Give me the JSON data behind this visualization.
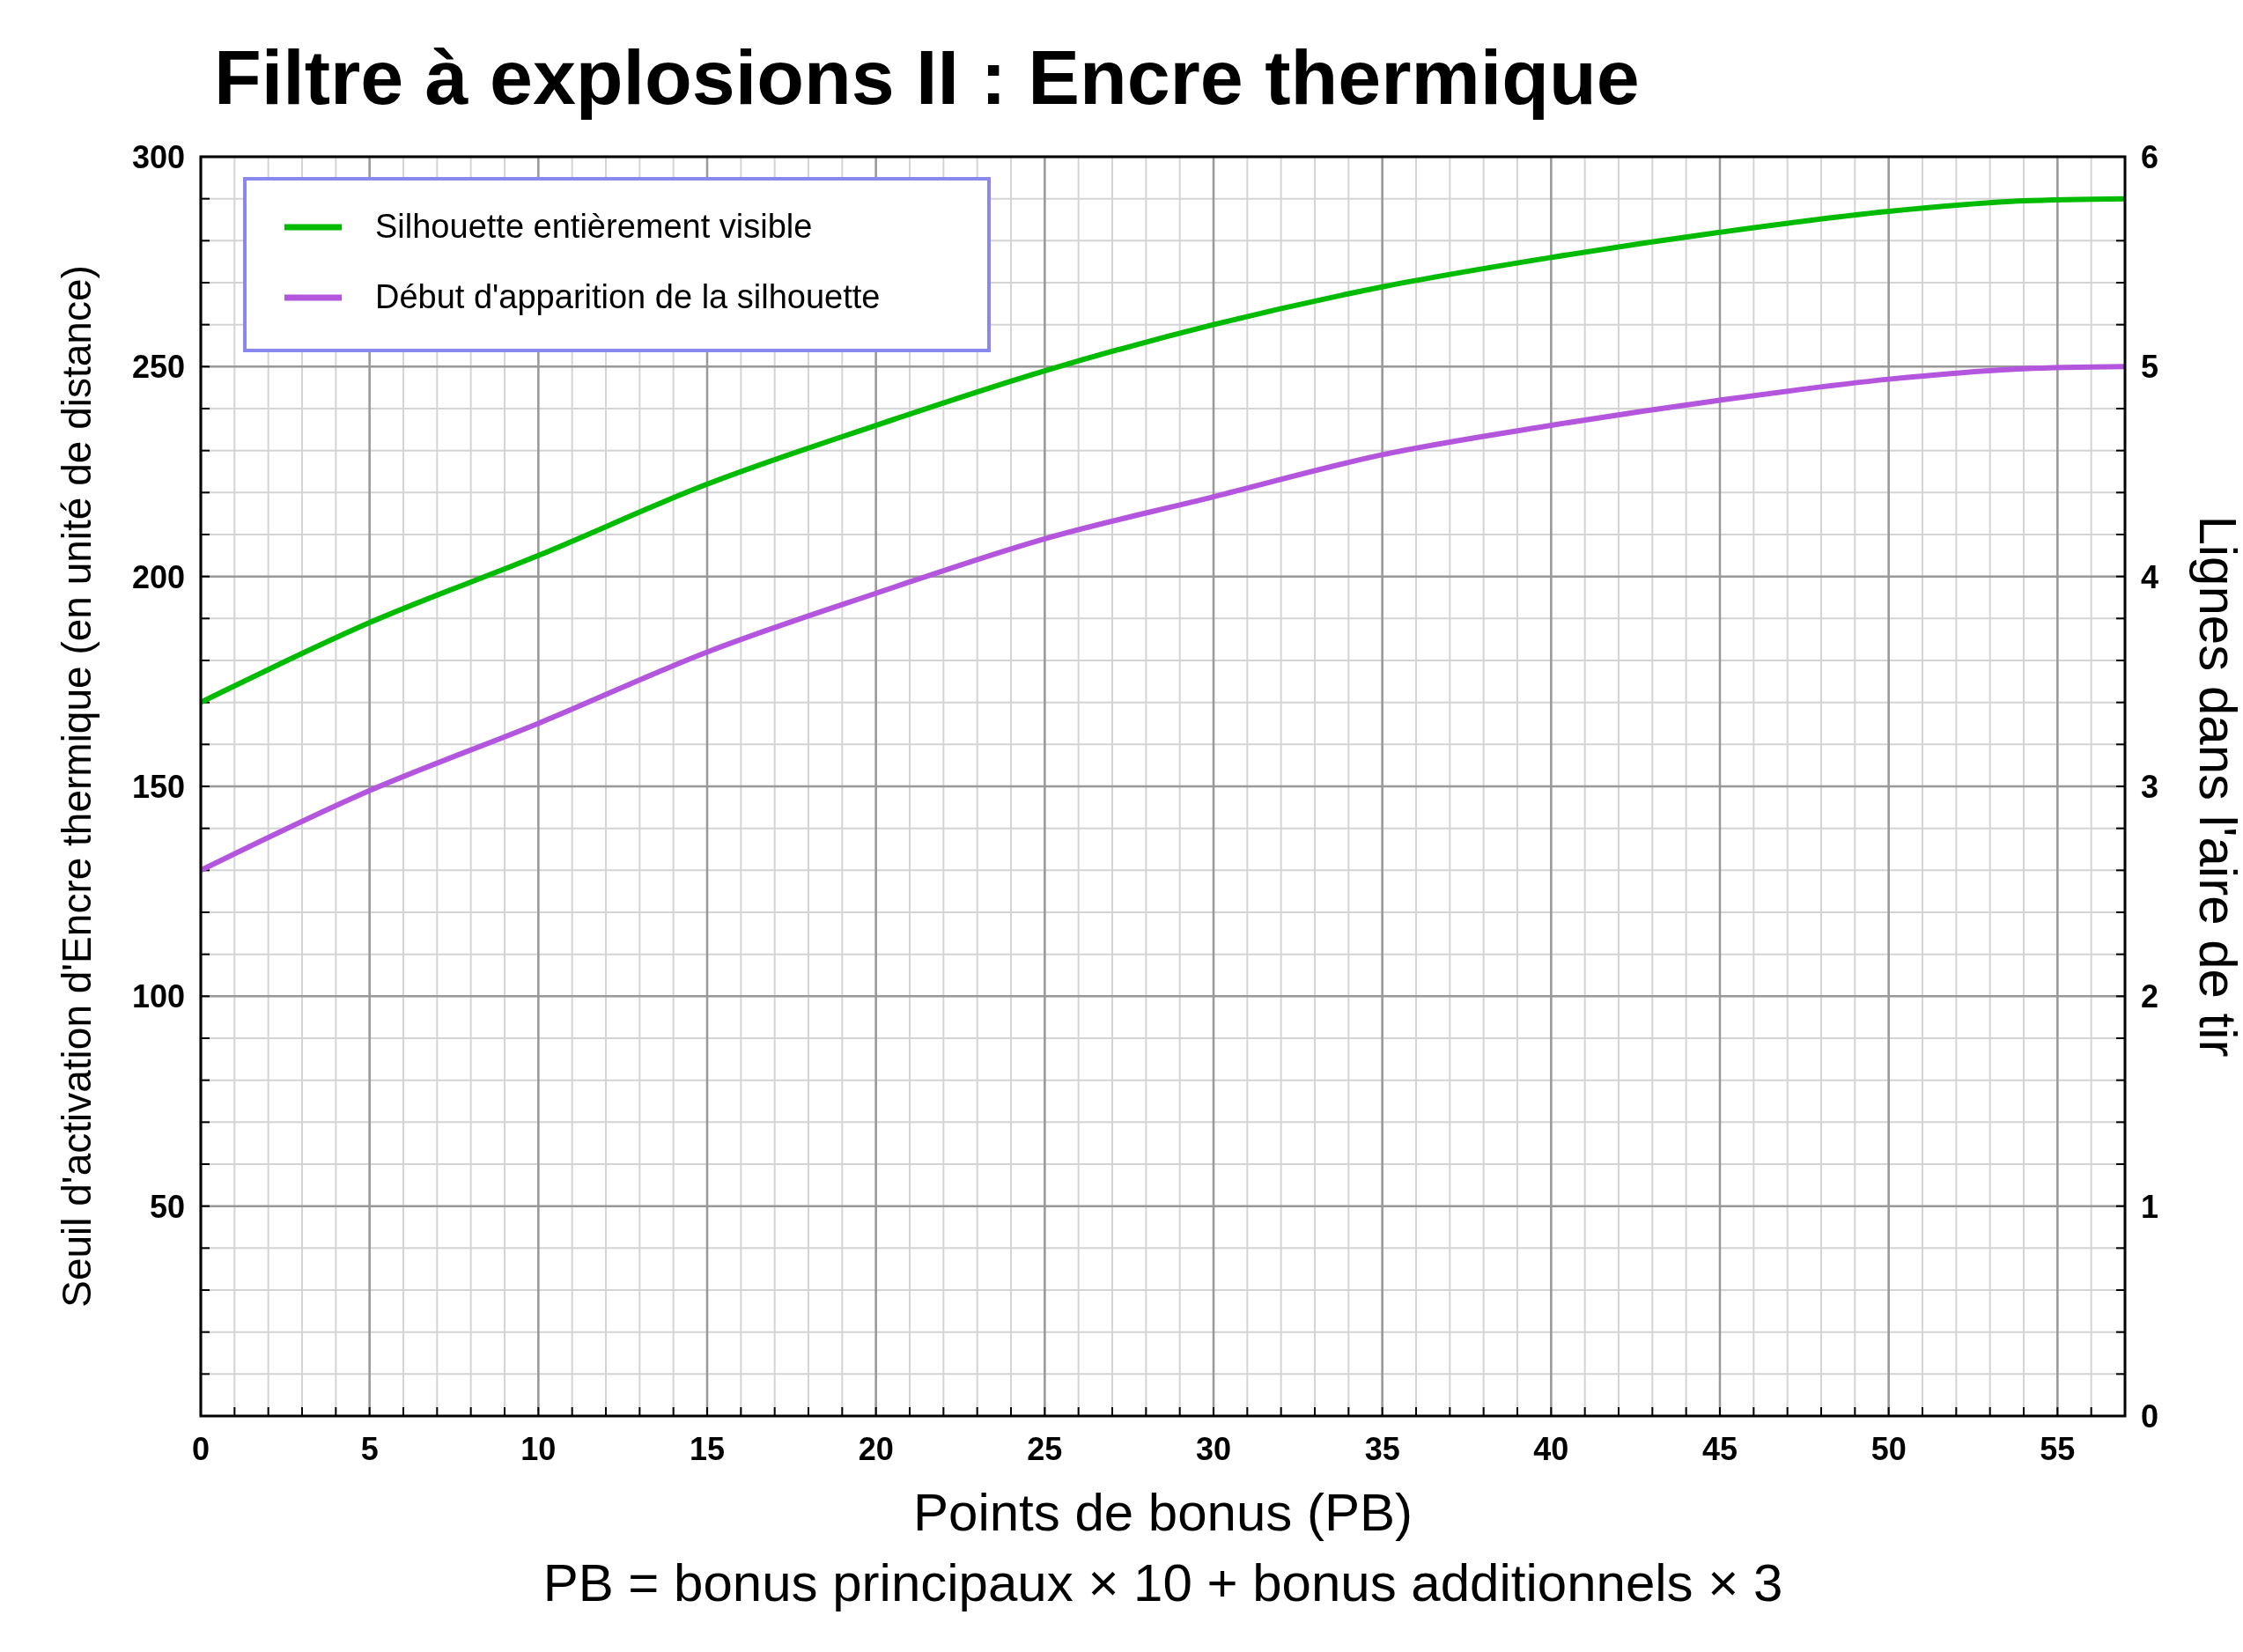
{
  "chart_data": {
    "type": "line",
    "title": "Filtre à explosions II : Encre thermique",
    "xlabel": "Points de bonus (PB)",
    "ylabel": "Seuil d'activation d'Encre thermique (en unité de distance)",
    "y2label": "Lignes dans l'aire de tir",
    "annotations": [
      "PB = bonus principaux × 10 + bonus additionnels × 3"
    ],
    "x": [
      0,
      5,
      10,
      15,
      20,
      25,
      30,
      35,
      40,
      45,
      50,
      54,
      57
    ],
    "series": [
      {
        "name": "Silhouette entièrement visible",
        "color": "#00bb00",
        "values": [
          170,
          189,
          205,
          222,
          236,
          249,
          260,
          269,
          276,
          282,
          287,
          289.5,
          290
        ]
      },
      {
        "name": "Début d'apparition de la silhouette",
        "color": "#b355dd",
        "values": [
          130,
          149,
          165,
          182,
          196,
          209,
          219,
          229,
          236,
          242,
          247,
          249.5,
          250
        ]
      }
    ],
    "xlim": [
      0,
      57
    ],
    "xticks": [
      0,
      5,
      10,
      15,
      20,
      25,
      30,
      35,
      40,
      45,
      50,
      55
    ],
    "ylim": [
      0,
      300
    ],
    "yticks": [
      50,
      100,
      150,
      200,
      250,
      300
    ],
    "y2lim": [
      0,
      6
    ],
    "y2ticks": [
      0,
      1,
      2,
      3,
      4,
      5,
      6
    ],
    "grid": true,
    "legend": "top left",
    "line_style": "solid",
    "marker": "none"
  }
}
